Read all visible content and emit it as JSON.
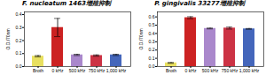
{
  "chart_data": [
    {
      "type": "bar",
      "title": "F. nucleatum 1463增殖抑制",
      "categories": [
        "Broth",
        "0 kHz",
        "500 kHz",
        "750 kHz",
        "1,000 kHz"
      ],
      "values": [
        0.08,
        0.3,
        0.09,
        0.085,
        0.09
      ],
      "errors": [
        0.005,
        0.07,
        0.005,
        0.005,
        0.005
      ],
      "colors": [
        "#e8e060",
        "#cc2222",
        "#aa88cc",
        "#cc3344",
        "#4466bb"
      ],
      "ylim": [
        0,
        0.42
      ],
      "yticks": [
        {
          "value": 0,
          "label": "0.0"
        },
        0.1,
        0.2,
        0.3,
        0.4
      ],
      "ylabel": "O.D./70nm"
    },
    {
      "type": "bar",
      "title": "P. gingivalis 33277增殖抑制",
      "categories": [
        "Broth",
        "0 kHz",
        "500 kHz",
        "750 kHz",
        "1,000 kHz"
      ],
      "values": [
        0.045,
        0.59,
        0.46,
        0.465,
        0.455
      ],
      "errors": [
        0.005,
        0.012,
        0.005,
        0.012,
        0.005
      ],
      "colors": [
        "#e8e060",
        "#cc2222",
        "#aa88cc",
        "#cc3344",
        "#4466bb"
      ],
      "ylim": [
        0.0,
        0.66
      ],
      "yticks": [
        {
          "value": 0,
          "label": "0.0"
        },
        0.1,
        0.2,
        0.3,
        0.4,
        0.5,
        0.6
      ],
      "ylabel": "O.D./70nm"
    }
  ]
}
